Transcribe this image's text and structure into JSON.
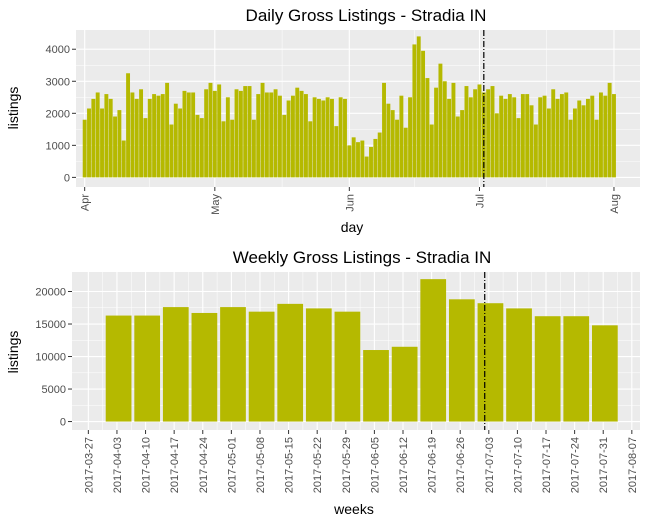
{
  "chart_data": [
    {
      "type": "bar",
      "title": "Daily Gross Listings - Stradia IN",
      "xlabel": "day",
      "ylabel": "listings",
      "x_axis": {
        "type": "date",
        "range": [
          "2017-03-30",
          "2017-08-07"
        ],
        "ticks": [
          "2017-04-01",
          "2017-05-01",
          "2017-06-01",
          "2017-07-01",
          "2017-08-01"
        ],
        "tick_labels": [
          "Apr",
          "May",
          "Jun",
          "Jul",
          "Aug"
        ]
      },
      "ylim": [
        -300,
        4600
      ],
      "yticks": [
        0,
        1000,
        2000,
        3000,
        4000
      ],
      "start_date": "2017-04-01",
      "values": [
        1800,
        2150,
        2450,
        2650,
        2150,
        2600,
        2450,
        1900,
        2100,
        1150,
        3250,
        2650,
        2450,
        2750,
        1850,
        2450,
        2600,
        2550,
        2600,
        2950,
        1650,
        2300,
        2150,
        2700,
        2650,
        2650,
        1950,
        1850,
        2750,
        2950,
        2700,
        2900,
        1750,
        2500,
        1800,
        2750,
        2700,
        2850,
        2850,
        1800,
        2600,
        2950,
        2650,
        2650,
        2750,
        2550,
        1950,
        2400,
        2550,
        2800,
        2700,
        2600,
        1750,
        2500,
        2450,
        2400,
        2500,
        2450,
        1600,
        2500,
        2450,
        1000,
        1250,
        1100,
        1150,
        650,
        950,
        1200,
        1400,
        2950,
        2300,
        2100,
        1800,
        2550,
        1550,
        2500,
        4150,
        4400,
        3950,
        3100,
        1650,
        2800,
        3550,
        3000,
        2450,
        2950,
        1900,
        2100,
        2850,
        2500,
        2750,
        2900,
        2650,
        2750,
        2850,
        2000,
        2550,
        2450,
        2600,
        2500,
        1850,
        2600,
        2600,
        2250,
        1650,
        2500,
        2550,
        2150,
        2750,
        2450,
        2600,
        2650,
        1800,
        2150,
        2400,
        2250,
        2450,
        2550,
        1800,
        2650,
        2550,
        2950,
        2600
      ],
      "vline": {
        "date": "2017-07-02",
        "style": "dot-dash"
      }
    },
    {
      "type": "bar",
      "title": "Weekly Gross Listings - Stradia IN",
      "xlabel": "weeks",
      "ylabel": "listings",
      "categories": [
        "2017-04-03",
        "2017-04-10",
        "2017-04-17",
        "2017-04-24",
        "2017-05-01",
        "2017-05-08",
        "2017-05-15",
        "2017-05-22",
        "2017-05-29",
        "2017-06-05",
        "2017-06-12",
        "2017-06-19",
        "2017-06-26",
        "2017-07-03",
        "2017-07-10",
        "2017-07-17",
        "2017-07-24",
        "2017-07-31"
      ],
      "values": [
        16300,
        16300,
        17600,
        16700,
        17600,
        16900,
        18100,
        17400,
        16900,
        11000,
        11500,
        21900,
        18800,
        18200,
        17400,
        16200,
        16200,
        14800
      ],
      "x_tick_labels": [
        "2017-03-27",
        "2017-04-03",
        "2017-04-10",
        "2017-04-17",
        "2017-04-24",
        "2017-05-01",
        "2017-05-08",
        "2017-05-15",
        "2017-05-22",
        "2017-05-29",
        "2017-06-05",
        "2017-06-12",
        "2017-06-19",
        "2017-06-26",
        "2017-07-03",
        "2017-07-10",
        "2017-07-17",
        "2017-07-24",
        "2017-07-31",
        "2017-08-07"
      ],
      "ylim": [
        -1300,
        23000
      ],
      "yticks": [
        0,
        5000,
        10000,
        15000,
        20000
      ],
      "vline": {
        "date": "2017-07-02",
        "style": "dot-dash"
      }
    }
  ],
  "colors": {
    "bar": "#b5b900",
    "panel": "#ebebeb",
    "grid": "#ffffff",
    "vline": "#000000"
  }
}
